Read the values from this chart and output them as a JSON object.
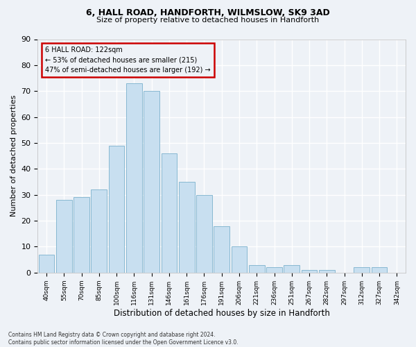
{
  "title1": "6, HALL ROAD, HANDFORTH, WILMSLOW, SK9 3AD",
  "title2": "Size of property relative to detached houses in Handforth",
  "xlabel": "Distribution of detached houses by size in Handforth",
  "ylabel": "Number of detached properties",
  "bar_color": "#c8dff0",
  "bar_edgecolor": "#7ab0cc",
  "annotation_box_color": "#cc0000",
  "annotation_text_line1": "6 HALL ROAD: 122sqm",
  "annotation_text_line2": "← 53% of detached houses are smaller (215)",
  "annotation_text_line3": "47% of semi-detached houses are larger (192) →",
  "categories": [
    "40sqm",
    "55sqm",
    "70sqm",
    "85sqm",
    "100sqm",
    "116sqm",
    "131sqm",
    "146sqm",
    "161sqm",
    "176sqm",
    "191sqm",
    "206sqm",
    "221sqm",
    "236sqm",
    "251sqm",
    "267sqm",
    "282sqm",
    "297sqm",
    "312sqm",
    "327sqm",
    "342sqm"
  ],
  "values": [
    7,
    28,
    29,
    32,
    49,
    73,
    70,
    46,
    35,
    30,
    18,
    10,
    3,
    2,
    3,
    1,
    1,
    0,
    2,
    2,
    0
  ],
  "ylim": [
    0,
    90
  ],
  "yticks": [
    0,
    10,
    20,
    30,
    40,
    50,
    60,
    70,
    80,
    90
  ],
  "footer_line1": "Contains HM Land Registry data © Crown copyright and database right 2024.",
  "footer_line2": "Contains public sector information licensed under the Open Government Licence v3.0.",
  "background_color": "#eef2f7",
  "plot_background": "#eef2f7",
  "grid_color": "#ffffff"
}
